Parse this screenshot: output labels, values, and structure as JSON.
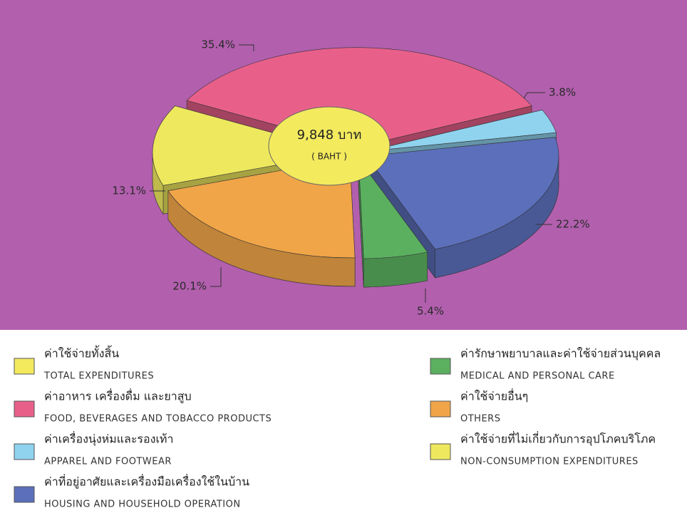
{
  "chart_data": {
    "type": "pie",
    "center_label": "9,848 บาท",
    "center_sublabel": "( BAHT )",
    "total_label_th": "ค่าใช้จ่ายทั้งสิ้น",
    "total_label": "TOTAL EXPENDITURES",
    "total_color": "#f3ea5e",
    "categories": [
      "FOOD, BEVERAGES AND TOBACCO PRODUCTS",
      "APPAREL AND FOOTWEAR",
      "HOUSING AND HOUSEHOLD OPERATION",
      "MEDICAL AND PERSONAL CARE",
      "OTHERS",
      "NON-CONSUMPTION EXPENDITURES"
    ],
    "categories_th": [
      "ค่าอาหาร เครื่องดื่ม และยาสูบ",
      "ค่าเครื่องนุ่งห่มและรองเท้า",
      "ค่าที่อยู่อาศัยและเครื่องมือเครื่องใช้ในบ้าน",
      "ค่ารักษาพยาบาลและค่าใช้จ่ายส่วนบุคคล",
      "ค่าใช้จ่ายอื่นๆ",
      "ค่าใช้จ่ายที่ไม่เกี่ยวกับการอุปโภคบริโภค"
    ],
    "values": [
      35.4,
      3.8,
      22.2,
      5.4,
      20.1,
      13.1
    ],
    "value_labels": [
      "35.4%",
      "3.8%",
      "22.2%",
      "5.4%",
      "20.1%",
      "13.1%"
    ],
    "colors": [
      "#e8608a",
      "#8fd3ef",
      "#5b6fbb",
      "#5bb060",
      "#f0a548",
      "#eee85e"
    ]
  }
}
